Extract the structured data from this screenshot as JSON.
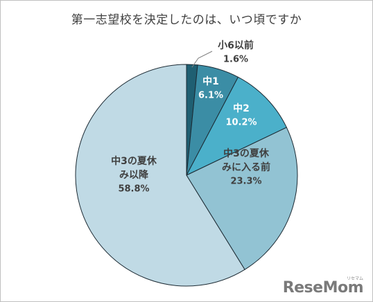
{
  "chart_data": {
    "type": "pie",
    "title": "第一志望校を決定したのは、いつ頃ですか",
    "slices": [
      {
        "label_lines": [
          "小6以前"
        ],
        "value": 1.6,
        "value_text": "1.6%",
        "color": "#1f5f72"
      },
      {
        "label_lines": [
          "中1"
        ],
        "value": 6.1,
        "value_text": "6.1%",
        "color": "#3b8da5"
      },
      {
        "label_lines": [
          "中2"
        ],
        "value": 10.2,
        "value_text": "10.2%",
        "color": "#4bb0ca"
      },
      {
        "label_lines": [
          "中3の夏休",
          "みに入る前"
        ],
        "value": 23.3,
        "value_text": "23.3%",
        "color": "#92c3d3"
      },
      {
        "label_lines": [
          "中3の夏休",
          "み以降"
        ],
        "value": 58.8,
        "value_text": "58.8%",
        "color": "#c0dae5"
      }
    ]
  },
  "watermark": {
    "text": "ReseMom",
    "small": "リセマム"
  }
}
